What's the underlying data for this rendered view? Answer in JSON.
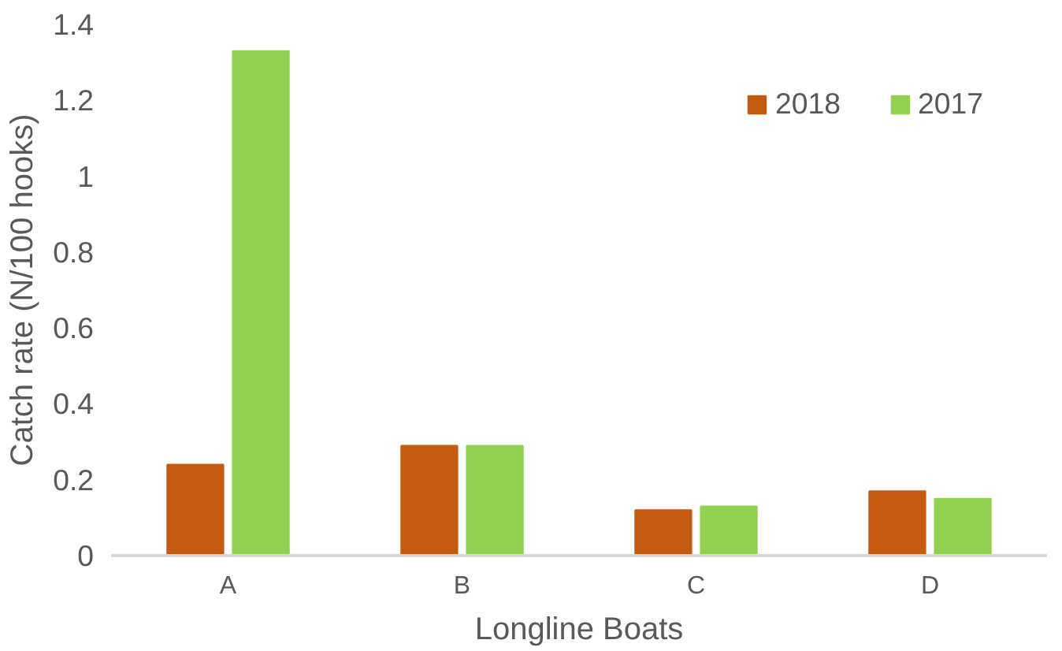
{
  "chart_data": {
    "type": "bar",
    "xlabel": "Longline Boats",
    "ylabel": "Catch rate (N/100 hooks)",
    "categories": [
      "A",
      "B",
      "C",
      "D"
    ],
    "series": [
      {
        "name": "2018",
        "color": "#c55a11",
        "values": [
          0.24,
          0.29,
          0.12,
          0.17
        ]
      },
      {
        "name": "2017",
        "color": "#92d050",
        "values": [
          1.33,
          0.29,
          0.13,
          0.15
        ]
      }
    ],
    "ylim": [
      0,
      1.4
    ],
    "yticks": [
      0,
      {
        "value": 0.2,
        "label": "0.2"
      },
      {
        "value": 0.4,
        "label": "0.4"
      },
      {
        "value": 0.6,
        "label": "0.6"
      },
      {
        "value": 0.8,
        "label": "0.8"
      },
      1,
      {
        "value": 1.2,
        "label": "1.2"
      },
      {
        "value": 1.4,
        "label": "1.4"
      }
    ],
    "grid": false,
    "legend": "top right"
  }
}
